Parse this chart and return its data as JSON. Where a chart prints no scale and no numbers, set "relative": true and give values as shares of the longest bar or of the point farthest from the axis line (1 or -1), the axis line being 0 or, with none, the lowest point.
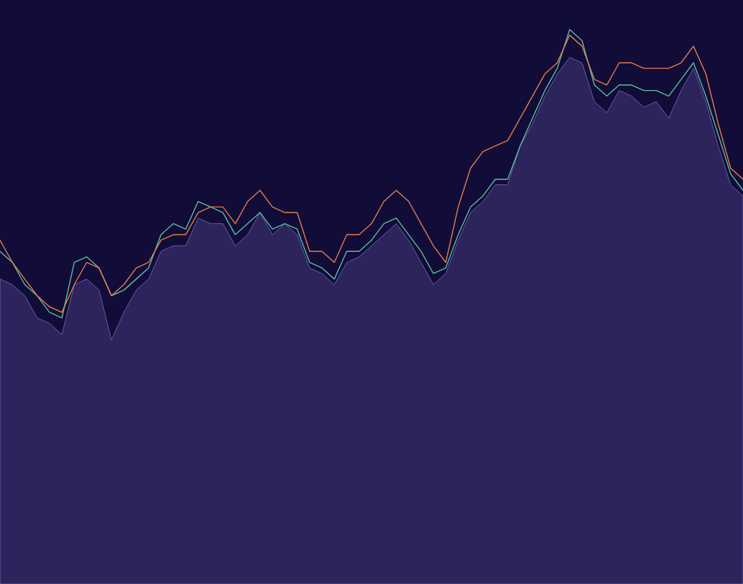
{
  "chart_data": {
    "type": "line",
    "relative": true,
    "marker": "none",
    "line_style": "solid",
    "categories": [
      null,
      null,
      null,
      null,
      null,
      null,
      null,
      null,
      null,
      null,
      null,
      null,
      null,
      null,
      null,
      null,
      null,
      null,
      null,
      null,
      null,
      null,
      null,
      null,
      null,
      null,
      null,
      null,
      null,
      null,
      null,
      null,
      null,
      null,
      null,
      null,
      null,
      null,
      null,
      null,
      null,
      null,
      null,
      null,
      null,
      null,
      null,
      null,
      null,
      null,
      null,
      null,
      null,
      null,
      null,
      null,
      null,
      null,
      null,
      null,
      null
    ],
    "series": [
      {
        "type": "area",
        "color": "#2d245b",
        "values": [
          0.55,
          0.54,
          0.52,
          0.48,
          0.47,
          0.45,
          0.54,
          0.55,
          0.53,
          0.44,
          0.49,
          0.53,
          0.55,
          0.6,
          0.61,
          0.61,
          0.66,
          0.65,
          0.65,
          0.61,
          0.63,
          0.67,
          0.63,
          0.65,
          0.63,
          0.57,
          0.56,
          0.54,
          0.58,
          0.59,
          0.61,
          0.63,
          0.65,
          0.62,
          0.58,
          0.54,
          0.56,
          0.62,
          0.67,
          0.69,
          0.72,
          0.72,
          0.79,
          0.83,
          0.88,
          0.92,
          0.95,
          0.94,
          0.87,
          0.85,
          0.89,
          0.88,
          0.86,
          0.87,
          0.84,
          0.89,
          0.93,
          0.87,
          0.79,
          0.72,
          0.7
        ]
      },
      {
        "color": "#5cc4a0",
        "values": [
          0.6,
          0.58,
          0.54,
          0.52,
          0.49,
          0.48,
          0.58,
          0.59,
          0.57,
          0.52,
          0.53,
          0.55,
          0.57,
          0.63,
          0.65,
          0.64,
          0.69,
          0.68,
          0.67,
          0.63,
          0.65,
          0.67,
          0.64,
          0.65,
          0.64,
          0.58,
          0.57,
          0.55,
          0.6,
          0.6,
          0.62,
          0.65,
          0.66,
          0.63,
          0.6,
          0.56,
          0.57,
          0.63,
          0.68,
          0.7,
          0.73,
          0.73,
          0.79,
          0.84,
          0.89,
          0.93,
          1.0,
          0.98,
          0.9,
          0.88,
          0.9,
          0.9,
          0.89,
          0.89,
          0.88,
          0.91,
          0.94,
          0.88,
          0.81,
          0.74,
          0.71
        ]
      },
      {
        "color": "#e8804a",
        "values": [
          0.62,
          0.58,
          0.55,
          0.52,
          0.5,
          0.49,
          0.54,
          0.58,
          0.57,
          0.52,
          0.54,
          0.57,
          0.58,
          0.62,
          0.63,
          0.63,
          0.67,
          0.68,
          0.68,
          0.65,
          0.69,
          0.71,
          0.68,
          0.67,
          0.67,
          0.6,
          0.6,
          0.58,
          0.63,
          0.63,
          0.65,
          0.69,
          0.71,
          0.69,
          0.65,
          0.61,
          0.58,
          0.68,
          0.75,
          0.78,
          0.79,
          0.8,
          0.84,
          0.88,
          0.92,
          0.94,
          0.99,
          0.97,
          0.91,
          0.9,
          0.94,
          0.94,
          0.93,
          0.93,
          0.93,
          0.94,
          0.97,
          0.92,
          0.83,
          0.75,
          0.73
        ]
      }
    ]
  }
}
